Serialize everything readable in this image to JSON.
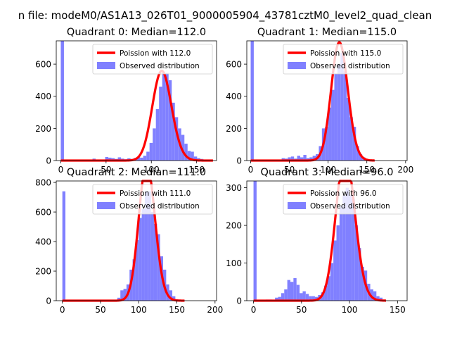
{
  "suptitle": "n file: modeM0/AS1A13_026T01_9000005904_43781cztM0_level2_quad_clean",
  "chart_data": [
    {
      "type": "bar",
      "title": "Quadrant 0: Median=112.0",
      "xlim": [
        -5,
        172
      ],
      "ylim": [
        0,
        745
      ],
      "xticks": [
        0,
        50,
        100,
        150
      ],
      "yticks": [
        0,
        200,
        400,
        600
      ],
      "legend_placement": "upper-right",
      "series": [
        {
          "name": "Poission with 112.0",
          "kind": "line",
          "mean": 112.0,
          "color": "#ff0000"
        },
        {
          "name": "Observed distribution",
          "kind": "histogram",
          "color": "#8080ff",
          "bin_width": 3.5,
          "bins": [
            [
              0,
              745
            ],
            [
              3.5,
              0
            ],
            [
              7,
              0
            ],
            [
              10.5,
              0
            ],
            [
              14,
              0
            ],
            [
              17.5,
              0
            ],
            [
              21,
              0
            ],
            [
              24.5,
              0
            ],
            [
              28,
              0
            ],
            [
              31.5,
              0
            ],
            [
              35,
              12
            ],
            [
              38.5,
              0
            ],
            [
              42,
              0
            ],
            [
              45.5,
              0
            ],
            [
              49,
              22
            ],
            [
              52.5,
              18
            ],
            [
              56,
              15
            ],
            [
              59.5,
              10
            ],
            [
              63,
              20
            ],
            [
              66.5,
              12
            ],
            [
              70,
              8
            ],
            [
              73.5,
              14
            ],
            [
              77,
              10
            ],
            [
              80.5,
              16
            ],
            [
              84,
              22
            ],
            [
              87.5,
              18
            ],
            [
              91,
              30
            ],
            [
              94.5,
              55
            ],
            [
              98,
              110
            ],
            [
              101.5,
              200
            ],
            [
              105,
              320
            ],
            [
              108.5,
              460
            ],
            [
              112,
              545
            ],
            [
              115.5,
              545
            ],
            [
              119,
              500
            ],
            [
              122.5,
              360
            ],
            [
              126,
              270
            ],
            [
              129.5,
              200
            ],
            [
              133,
              160
            ],
            [
              136.5,
              105
            ],
            [
              140,
              60
            ],
            [
              143.5,
              55
            ],
            [
              147,
              25
            ],
            [
              150.5,
              15
            ],
            [
              154,
              10
            ],
            [
              157.5,
              5
            ],
            [
              161,
              3
            ],
            [
              164.5,
              2
            ]
          ]
        }
      ]
    },
    {
      "type": "bar",
      "title": "Quadrant 1: Median=115.0",
      "xlim": [
        -5,
        202
      ],
      "ylim": [
        0,
        745
      ],
      "xticks": [
        0,
        50,
        100,
        150,
        200
      ],
      "yticks": [
        0,
        200,
        400,
        600
      ],
      "legend_placement": "upper-right",
      "series": [
        {
          "name": "Poission with 115.0",
          "kind": "line",
          "mean": 115.0,
          "color": "#ff0000"
        },
        {
          "name": "Observed distribution",
          "kind": "histogram",
          "color": "#8080ff",
          "bin_width": 4,
          "bins": [
            [
              0,
              745
            ],
            [
              4,
              0
            ],
            [
              8,
              0
            ],
            [
              12,
              0
            ],
            [
              16,
              0
            ],
            [
              20,
              0
            ],
            [
              24,
              0
            ],
            [
              28,
              0
            ],
            [
              32,
              0
            ],
            [
              36,
              0
            ],
            [
              40,
              15
            ],
            [
              44,
              12
            ],
            [
              48,
              20
            ],
            [
              52,
              25
            ],
            [
              56,
              12
            ],
            [
              60,
              30
            ],
            [
              64,
              20
            ],
            [
              68,
              35
            ],
            [
              72,
              15
            ],
            [
              76,
              20
            ],
            [
              80,
              30
            ],
            [
              84,
              40
            ],
            [
              88,
              90
            ],
            [
              92,
              200
            ],
            [
              96,
              210
            ],
            [
              100,
              330
            ],
            [
              104,
              440
            ],
            [
              108,
              540
            ],
            [
              112,
              600
            ],
            [
              116,
              670
            ],
            [
              120,
              555
            ],
            [
              124,
              390
            ],
            [
              128,
              270
            ],
            [
              132,
              210
            ],
            [
              136,
              90
            ],
            [
              140,
              40
            ],
            [
              144,
              20
            ],
            [
              148,
              10
            ],
            [
              152,
              5
            ],
            [
              156,
              3
            ]
          ]
        }
      ]
    },
    {
      "type": "bar",
      "title": "Quadrant 2: Median=111.0",
      "xlim": [
        -8,
        202
      ],
      "ylim": [
        0,
        810
      ],
      "xticks": [
        0,
        50,
        100,
        150,
        200
      ],
      "yticks": [
        0,
        200,
        400,
        600,
        800
      ],
      "legend_placement": "upper-right",
      "series": [
        {
          "name": "Poission with 111.0",
          "kind": "line",
          "mean": 111.0,
          "color": "#ff0000"
        },
        {
          "name": "Observed distribution",
          "kind": "histogram",
          "color": "#8080ff",
          "bin_width": 4,
          "bins": [
            [
              0,
              740
            ],
            [
              4,
              0
            ],
            [
              8,
              0
            ],
            [
              12,
              0
            ],
            [
              16,
              0
            ],
            [
              20,
              0
            ],
            [
              24,
              0
            ],
            [
              28,
              0
            ],
            [
              32,
              0
            ],
            [
              36,
              0
            ],
            [
              40,
              0
            ],
            [
              44,
              0
            ],
            [
              48,
              0
            ],
            [
              52,
              0
            ],
            [
              56,
              0
            ],
            [
              60,
              0
            ],
            [
              64,
              0
            ],
            [
              68,
              5
            ],
            [
              72,
              20
            ],
            [
              76,
              70
            ],
            [
              80,
              80
            ],
            [
              84,
              110
            ],
            [
              88,
              210
            ],
            [
              92,
              280
            ],
            [
              96,
              410
            ],
            [
              100,
              560
            ],
            [
              104,
              620
            ],
            [
              108,
              740
            ],
            [
              112,
              740
            ],
            [
              116,
              600
            ],
            [
              120,
              520
            ],
            [
              124,
              450
            ],
            [
              128,
              300
            ],
            [
              132,
              210
            ],
            [
              136,
              110
            ],
            [
              140,
              70
            ],
            [
              144,
              30
            ],
            [
              148,
              10
            ],
            [
              152,
              5
            ],
            [
              156,
              3
            ]
          ]
        }
      ]
    },
    {
      "type": "bar",
      "title": "Quadrant 3: Median=96.0",
      "xlim": [
        -7,
        160
      ],
      "ylim": [
        0,
        318
      ],
      "xticks": [
        0,
        50,
        100,
        150
      ],
      "yticks": [
        0,
        100,
        200,
        300
      ],
      "legend_placement": "upper-right",
      "series": [
        {
          "name": "Poission with 96.0",
          "kind": "line",
          "mean": 96.0,
          "color": "#ff0000"
        },
        {
          "name": "Observed distribution",
          "kind": "histogram",
          "color": "#8080ff",
          "bin_width": 3.2,
          "bins": [
            [
              0,
              318
            ],
            [
              3.2,
              0
            ],
            [
              6.4,
              0
            ],
            [
              9.6,
              0
            ],
            [
              12.8,
              3
            ],
            [
              16,
              3
            ],
            [
              19.2,
              2
            ],
            [
              22.4,
              8
            ],
            [
              25.6,
              10
            ],
            [
              28.8,
              20
            ],
            [
              32,
              30
            ],
            [
              35.2,
              55
            ],
            [
              38.4,
              50
            ],
            [
              41.6,
              60
            ],
            [
              44.8,
              42
            ],
            [
              48,
              20
            ],
            [
              51.2,
              25
            ],
            [
              54.4,
              18
            ],
            [
              57.6,
              12
            ],
            [
              60.8,
              12
            ],
            [
              64,
              10
            ],
            [
              67.2,
              15
            ],
            [
              70.4,
              22
            ],
            [
              73.6,
              40
            ],
            [
              76.8,
              65
            ],
            [
              80,
              100
            ],
            [
              83.2,
              160
            ],
            [
              86.4,
              200
            ],
            [
              89.6,
              250
            ],
            [
              92.8,
              280
            ],
            [
              96,
              300
            ],
            [
              99.2,
              280
            ],
            [
              102.4,
              270
            ],
            [
              105.6,
              200
            ],
            [
              108.8,
              140
            ],
            [
              112,
              90
            ],
            [
              115.2,
              80
            ],
            [
              118.4,
              45
            ],
            [
              121.6,
              30
            ],
            [
              124.8,
              25
            ],
            [
              128,
              12
            ],
            [
              131.2,
              8
            ],
            [
              134.4,
              3
            ]
          ]
        }
      ]
    }
  ]
}
